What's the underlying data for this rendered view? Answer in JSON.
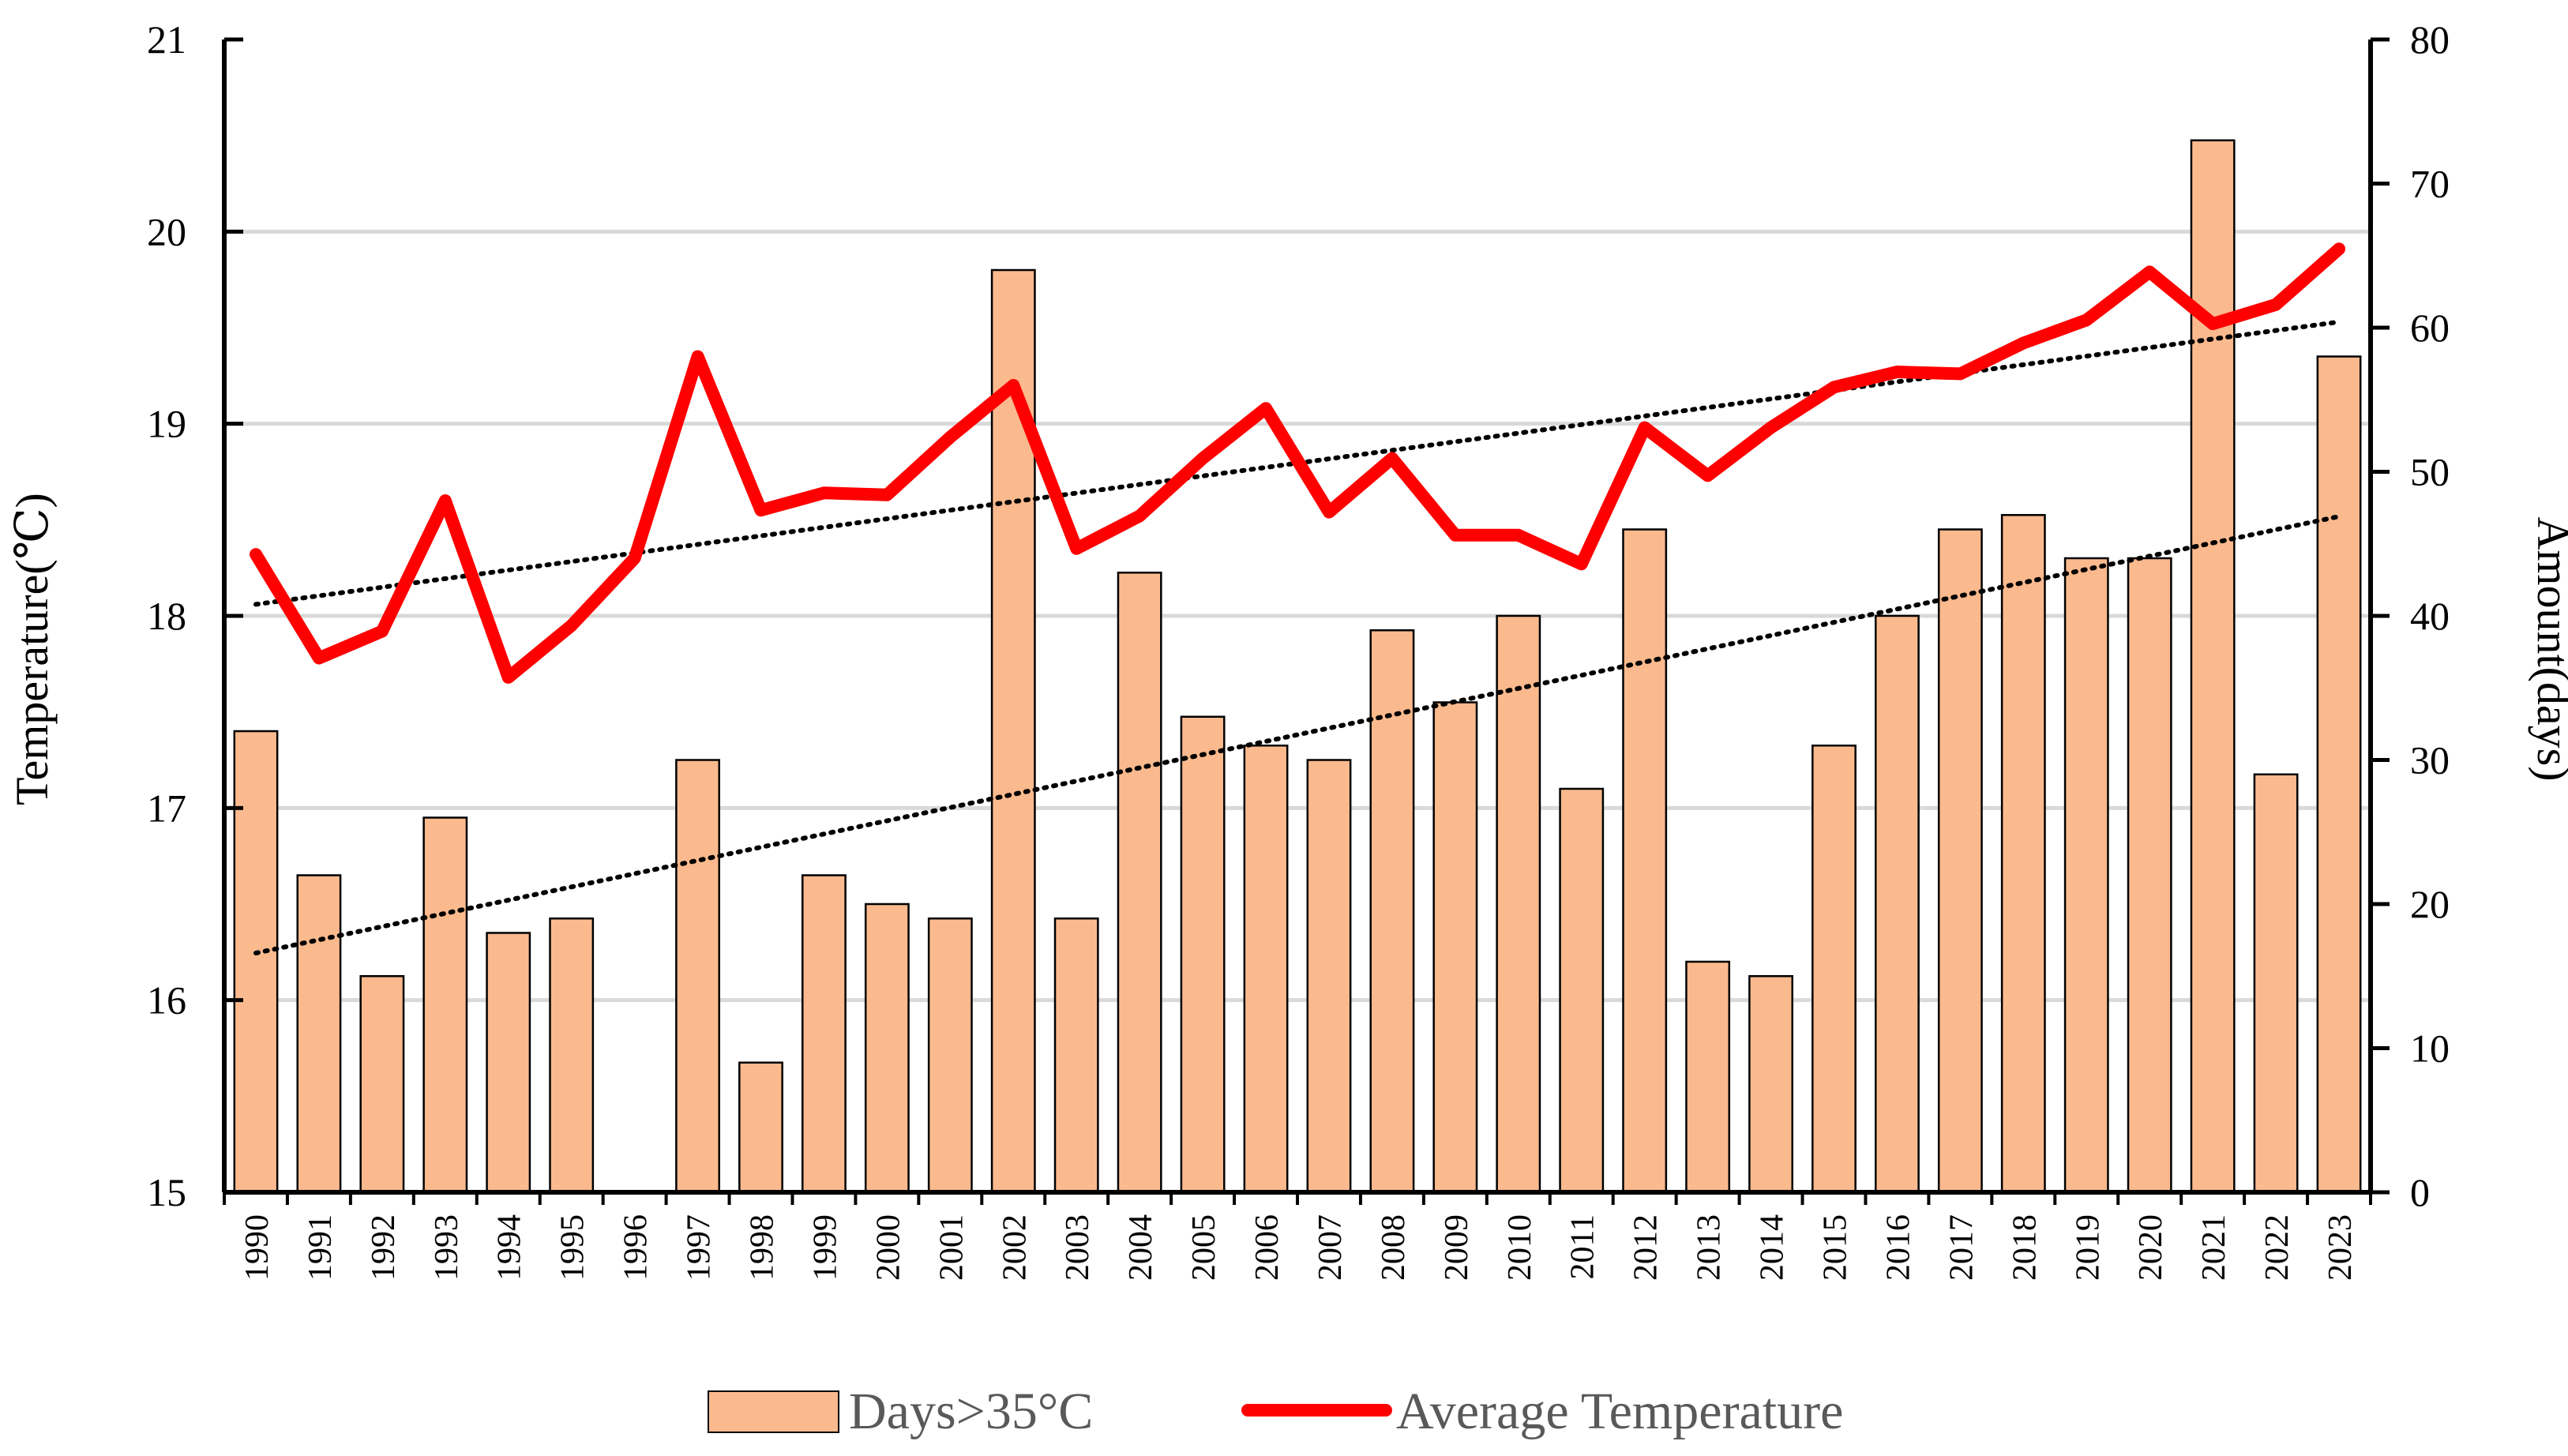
{
  "chart_data": {
    "type": "bar+line",
    "title": "",
    "categories": [
      "1990",
      "1991",
      "1992",
      "1993",
      "1994",
      "1995",
      "1996",
      "1997",
      "1998",
      "1999",
      "2000",
      "2001",
      "2002",
      "2003",
      "2004",
      "2005",
      "2006",
      "2007",
      "2008",
      "2009",
      "2010",
      "2011",
      "2012",
      "2013",
      "2014",
      "2015",
      "2016",
      "2017",
      "2018",
      "2019",
      "2020",
      "2021",
      "2022",
      "2023"
    ],
    "series": [
      {
        "name": "Days>35°C",
        "kind": "bar",
        "axis": "right",
        "color": "#FBBA8E",
        "values": [
          32,
          22,
          15,
          26,
          18,
          19,
          0,
          30,
          9,
          22,
          20,
          19,
          64,
          19,
          43,
          33,
          31,
          30,
          39,
          34,
          40,
          28,
          46,
          16,
          15,
          31,
          40,
          46,
          47,
          44,
          44,
          73,
          29,
          58
        ]
      },
      {
        "name": "Average Temperature",
        "kind": "line",
        "axis": "left",
        "color": "#FF0000",
        "values": [
          18.32,
          17.78,
          17.92,
          18.6,
          17.68,
          17.95,
          18.3,
          19.35,
          18.55,
          18.64,
          18.63,
          18.93,
          19.2,
          18.35,
          18.52,
          18.82,
          19.08,
          18.54,
          18.82,
          18.42,
          18.42,
          18.27,
          18.98,
          18.73,
          18.98,
          19.19,
          19.27,
          19.26,
          19.42,
          19.54,
          19.79,
          19.52,
          19.62,
          19.91
        ]
      }
    ],
    "trendlines": [
      {
        "series": "Average Temperature",
        "start": 18.06,
        "end": 19.53,
        "style": "dotted"
      },
      {
        "series": "Days>35°C",
        "start": 16.6,
        "end": 46.9,
        "style": "dotted"
      }
    ],
    "left_axis": {
      "label": "Temperature(℃)",
      "range": [
        15,
        21
      ],
      "ticks": [
        "15",
        "16",
        "17",
        "18",
        "19",
        "20",
        "21"
      ]
    },
    "right_axis": {
      "label": "Amount(days)",
      "range": [
        0,
        80
      ],
      "ticks": [
        "0",
        "10",
        "20",
        "30",
        "40",
        "50",
        "60",
        "70",
        "80"
      ]
    },
    "grid": true,
    "legend": {
      "position": "bottom",
      "items": [
        "Days>35°C",
        "Average Temperature"
      ]
    }
  }
}
